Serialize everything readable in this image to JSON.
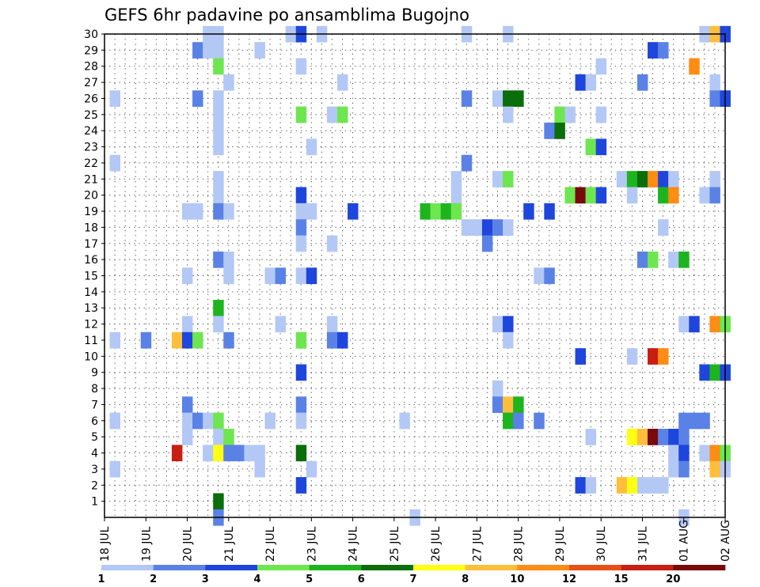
{
  "chart_data": {
    "type": "heatmap",
    "title": "GEFS 6hr padavine po ansamblima Bugojno",
    "xlabel": "",
    "ylabel": "",
    "x_ticks": [
      "18 JUL",
      "19 JUL",
      "20 JUL",
      "21 JUL",
      "22 JUL",
      "23 JUL",
      "24 JUL",
      "25 JUL",
      "26 JUL",
      "27 JUL",
      "28 JUL",
      "29 JUL",
      "30 JUL",
      "31 JUL",
      "01 AUG",
      "02 AUG"
    ],
    "x_range_steps": [
      0,
      60
    ],
    "steps_per_day": 4,
    "y_ticks": [
      1,
      2,
      3,
      4,
      5,
      6,
      7,
      8,
      9,
      10,
      11,
      12,
      13,
      14,
      15,
      16,
      17,
      18,
      19,
      20,
      21,
      22,
      23,
      24,
      25,
      26,
      27,
      28,
      29,
      30
    ],
    "y_range": [
      0,
      30
    ],
    "grid": true,
    "colorbar": {
      "labels": [
        "1",
        "2",
        "3",
        "4",
        "5",
        "6",
        "7",
        "8",
        "10",
        "12",
        "15",
        "20"
      ],
      "colors": [
        "#b4c8f5",
        "#5a82e6",
        "#1e46dc",
        "#6ee650",
        "#1eb41e",
        "#0a6e0a",
        "#ffff14",
        "#ffbe3c",
        "#ff8c14",
        "#e65014",
        "#c81e14",
        "#780a0a"
      ]
    },
    "cells": [
      [
        10,
        30,
        0
      ],
      [
        11,
        30,
        0
      ],
      [
        18,
        30,
        0
      ],
      [
        19,
        30,
        2
      ],
      [
        21,
        30,
        0
      ],
      [
        35,
        30,
        0
      ],
      [
        39,
        30,
        0
      ],
      [
        58,
        30,
        0
      ],
      [
        59,
        30,
        7
      ],
      [
        60,
        30,
        2
      ],
      [
        9,
        29,
        1
      ],
      [
        10,
        29,
        0
      ],
      [
        11,
        29,
        0
      ],
      [
        15,
        29,
        0
      ],
      [
        53,
        29,
        2
      ],
      [
        54,
        29,
        1
      ],
      [
        11,
        28,
        3
      ],
      [
        19,
        28,
        0
      ],
      [
        48,
        28,
        0
      ],
      [
        57,
        28,
        8
      ],
      [
        12,
        27,
        0
      ],
      [
        23,
        27,
        0
      ],
      [
        46,
        27,
        2
      ],
      [
        47,
        27,
        0
      ],
      [
        52,
        27,
        1
      ],
      [
        59,
        27,
        0
      ],
      [
        1,
        26,
        0
      ],
      [
        9,
        26,
        1
      ],
      [
        11,
        26,
        0
      ],
      [
        35,
        26,
        1
      ],
      [
        38,
        26,
        0
      ],
      [
        39,
        26,
        5
      ],
      [
        40,
        26,
        5
      ],
      [
        59,
        26,
        1
      ],
      [
        60,
        26,
        2
      ],
      [
        11,
        25,
        0
      ],
      [
        19,
        25,
        3
      ],
      [
        22,
        25,
        0
      ],
      [
        23,
        25,
        3
      ],
      [
        39,
        25,
        0
      ],
      [
        44,
        25,
        3
      ],
      [
        45,
        25,
        0
      ],
      [
        48,
        25,
        0
      ],
      [
        11,
        24,
        0
      ],
      [
        43,
        24,
        1
      ],
      [
        44,
        24,
        5
      ],
      [
        11,
        23,
        0
      ],
      [
        20,
        23,
        0
      ],
      [
        47,
        23,
        3
      ],
      [
        48,
        23,
        2
      ],
      [
        1,
        22,
        0
      ],
      [
        35,
        22,
        1
      ],
      [
        11,
        21,
        0
      ],
      [
        34,
        21,
        0
      ],
      [
        38,
        21,
        0
      ],
      [
        39,
        21,
        3
      ],
      [
        50,
        21,
        0
      ],
      [
        51,
        21,
        4
      ],
      [
        52,
        21,
        5
      ],
      [
        53,
        21,
        8
      ],
      [
        54,
        21,
        2
      ],
      [
        55,
        21,
        0
      ],
      [
        59,
        21,
        0
      ],
      [
        11,
        20,
        0
      ],
      [
        19,
        20,
        2
      ],
      [
        34,
        20,
        0
      ],
      [
        45,
        20,
        3
      ],
      [
        46,
        20,
        11
      ],
      [
        47,
        20,
        3
      ],
      [
        48,
        20,
        2
      ],
      [
        51,
        20,
        0
      ],
      [
        54,
        20,
        4
      ],
      [
        55,
        20,
        8
      ],
      [
        58,
        20,
        0
      ],
      [
        59,
        20,
        1
      ],
      [
        8,
        19,
        0
      ],
      [
        9,
        19,
        0
      ],
      [
        11,
        19,
        1
      ],
      [
        12,
        19,
        0
      ],
      [
        19,
        19,
        0
      ],
      [
        20,
        19,
        0
      ],
      [
        24,
        19,
        2
      ],
      [
        31,
        19,
        4
      ],
      [
        32,
        19,
        3
      ],
      [
        33,
        19,
        4
      ],
      [
        34,
        19,
        3
      ],
      [
        41,
        19,
        2
      ],
      [
        43,
        19,
        2
      ],
      [
        19,
        18,
        1
      ],
      [
        35,
        18,
        0
      ],
      [
        36,
        18,
        0
      ],
      [
        37,
        18,
        2
      ],
      [
        38,
        18,
        1
      ],
      [
        39,
        18,
        0
      ],
      [
        54,
        18,
        0
      ],
      [
        19,
        17,
        0
      ],
      [
        22,
        17,
        0
      ],
      [
        37,
        17,
        1
      ],
      [
        11,
        16,
        1
      ],
      [
        12,
        16,
        0
      ],
      [
        52,
        16,
        1
      ],
      [
        53,
        16,
        3
      ],
      [
        55,
        16,
        0
      ],
      [
        56,
        16,
        4
      ],
      [
        8,
        15,
        0
      ],
      [
        12,
        15,
        0
      ],
      [
        16,
        15,
        0
      ],
      [
        17,
        15,
        1
      ],
      [
        19,
        15,
        0
      ],
      [
        20,
        15,
        2
      ],
      [
        42,
        15,
        0
      ],
      [
        43,
        15,
        1
      ],
      [
        11,
        13,
        4
      ],
      [
        8,
        12,
        0
      ],
      [
        11,
        12,
        0
      ],
      [
        17,
        12,
        0
      ],
      [
        22,
        12,
        0
      ],
      [
        38,
        12,
        0
      ],
      [
        39,
        12,
        2
      ],
      [
        56,
        12,
        0
      ],
      [
        57,
        12,
        2
      ],
      [
        59,
        12,
        8
      ],
      [
        60,
        12,
        3
      ],
      [
        1,
        11,
        0
      ],
      [
        4,
        11,
        1
      ],
      [
        7,
        11,
        7
      ],
      [
        8,
        11,
        2
      ],
      [
        9,
        11,
        3
      ],
      [
        12,
        11,
        1
      ],
      [
        19,
        11,
        3
      ],
      [
        22,
        11,
        1
      ],
      [
        23,
        11,
        2
      ],
      [
        39,
        11,
        0
      ],
      [
        46,
        10,
        2
      ],
      [
        51,
        10,
        0
      ],
      [
        53,
        10,
        10
      ],
      [
        54,
        10,
        8
      ],
      [
        19,
        9,
        2
      ],
      [
        58,
        9,
        2
      ],
      [
        59,
        9,
        4
      ],
      [
        60,
        9,
        2
      ],
      [
        38,
        8,
        0
      ],
      [
        8,
        7,
        1
      ],
      [
        19,
        7,
        1
      ],
      [
        38,
        7,
        1
      ],
      [
        39,
        7,
        7
      ],
      [
        40,
        7,
        4
      ],
      [
        1,
        6,
        0
      ],
      [
        8,
        6,
        0
      ],
      [
        9,
        6,
        1
      ],
      [
        10,
        6,
        0
      ],
      [
        11,
        6,
        3
      ],
      [
        16,
        6,
        0
      ],
      [
        19,
        6,
        0
      ],
      [
        29,
        6,
        0
      ],
      [
        39,
        6,
        4
      ],
      [
        40,
        6,
        1
      ],
      [
        42,
        6,
        1
      ],
      [
        56,
        6,
        1
      ],
      [
        57,
        6,
        1
      ],
      [
        58,
        6,
        1
      ],
      [
        8,
        5,
        0
      ],
      [
        11,
        5,
        0
      ],
      [
        12,
        5,
        3
      ],
      [
        47,
        5,
        0
      ],
      [
        51,
        5,
        6
      ],
      [
        52,
        5,
        7
      ],
      [
        53,
        5,
        11
      ],
      [
        54,
        5,
        1
      ],
      [
        55,
        5,
        2
      ],
      [
        56,
        5,
        1
      ],
      [
        7,
        4,
        10
      ],
      [
        10,
        4,
        0
      ],
      [
        11,
        4,
        6
      ],
      [
        12,
        4,
        1
      ],
      [
        13,
        4,
        1
      ],
      [
        14,
        4,
        0
      ],
      [
        15,
        4,
        0
      ],
      [
        19,
        4,
        5
      ],
      [
        55,
        4,
        0
      ],
      [
        56,
        4,
        2
      ],
      [
        58,
        4,
        0
      ],
      [
        59,
        4,
        8
      ],
      [
        60,
        4,
        3
      ],
      [
        1,
        3,
        0
      ],
      [
        15,
        3,
        0
      ],
      [
        20,
        3,
        0
      ],
      [
        55,
        3,
        0
      ],
      [
        56,
        3,
        1
      ],
      [
        59,
        3,
        7
      ],
      [
        60,
        3,
        0
      ],
      [
        19,
        2,
        2
      ],
      [
        46,
        2,
        2
      ],
      [
        47,
        2,
        0
      ],
      [
        50,
        2,
        7
      ],
      [
        51,
        2,
        6
      ],
      [
        52,
        2,
        0
      ],
      [
        53,
        2,
        0
      ],
      [
        54,
        2,
        0
      ],
      [
        11,
        1,
        5
      ],
      [
        11,
        0,
        1
      ],
      [
        30,
        0,
        0
      ],
      [
        56,
        0,
        0
      ]
    ]
  }
}
